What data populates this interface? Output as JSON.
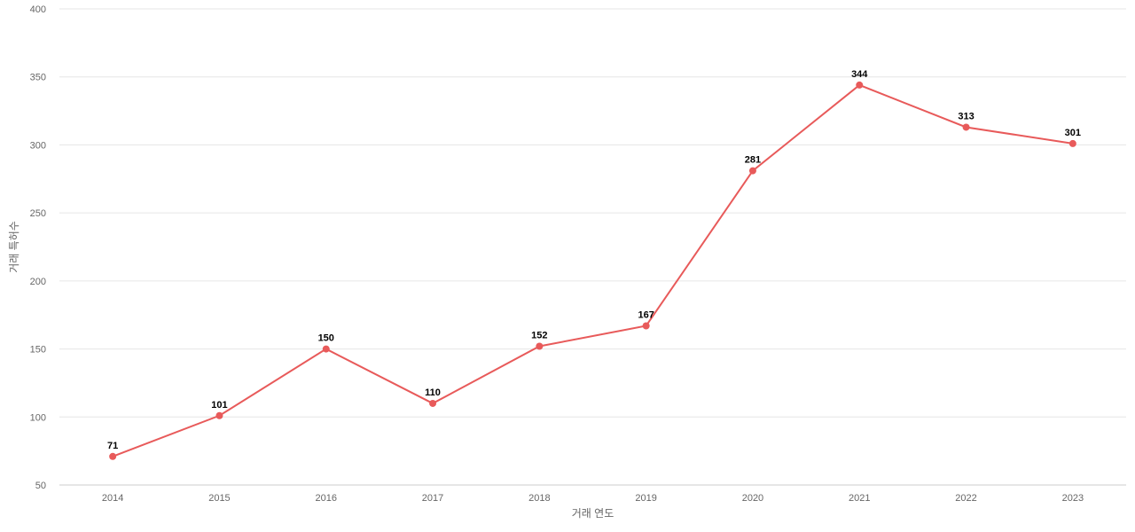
{
  "chart_data": {
    "type": "line",
    "title": "",
    "xlabel": "거래 연도",
    "ylabel": "거래 특허수",
    "categories": [
      "2014",
      "2015",
      "2016",
      "2017",
      "2018",
      "2019",
      "2020",
      "2021",
      "2022",
      "2023"
    ],
    "series": [
      {
        "values": [
          71,
          101,
          150,
          110,
          152,
          167,
          281,
          344,
          313,
          301
        ],
        "color": "#e85a5a"
      }
    ],
    "ylim": [
      50,
      400
    ],
    "yticks": [
      50,
      100,
      150,
      200,
      250,
      300,
      350,
      400
    ],
    "grid": true,
    "data_labels": true,
    "legend": "none"
  }
}
